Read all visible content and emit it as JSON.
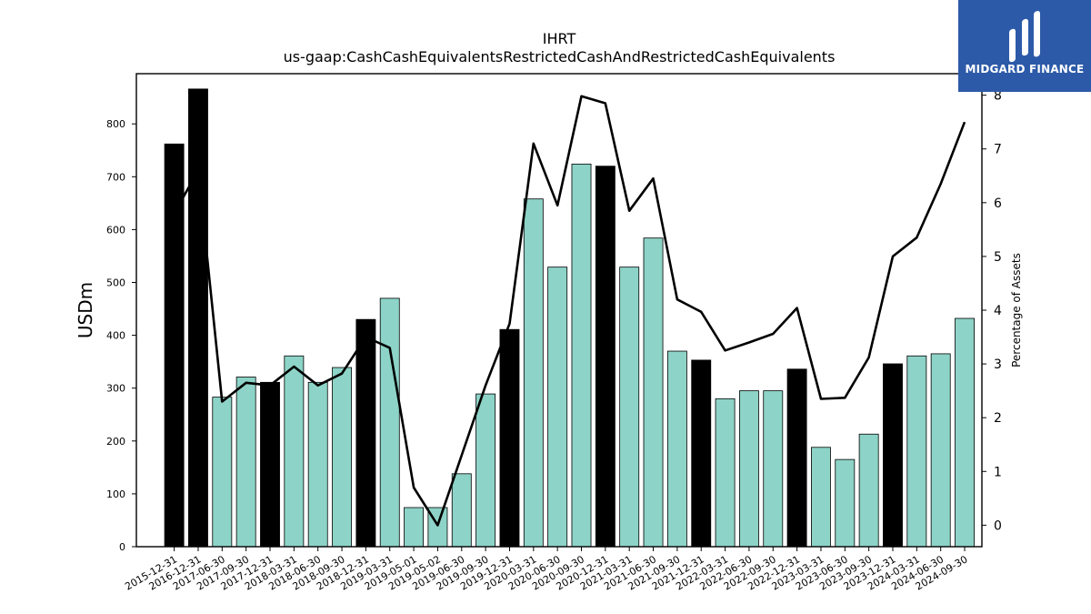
{
  "header": {
    "title": "IHRT",
    "subtitle": "us-gaap:CashCashEquivalentsRestrictedCashAndRestrictedCashEquivalents"
  },
  "logo": {
    "text": "MIDGARD FINANCE",
    "color": "#2c5aa8"
  },
  "chart_data": {
    "type": "bar",
    "title": "IHRT",
    "subtitle": "us-gaap:CashCashEquivalentsRestrictedCashAndRestrictedCashEquivalents",
    "ylabel": "USDm",
    "y2label": "Percentage of Assets",
    "ylim": [
      0,
      895
    ],
    "y2lim": [
      -0.4,
      8.4
    ],
    "yticks": [
      0,
      100,
      200,
      300,
      400,
      500,
      600,
      700,
      800
    ],
    "y2ticks": [
      0,
      1,
      2,
      3,
      4,
      5,
      6,
      7,
      8
    ],
    "colors": {
      "annual": "#000000",
      "quarterly": "#8dd3c7",
      "line": "#000000"
    },
    "categories": [
      "2015-12-31",
      "2016-12-31",
      "2017-06-30",
      "2017-09-30",
      "2017-12-31",
      "2018-03-31",
      "2018-06-30",
      "2018-09-30",
      "2018-12-31",
      "2019-03-31",
      "2019-05-01",
      "2019-05-02",
      "2019-06-30",
      "2019-09-30",
      "2019-12-31",
      "2020-03-31",
      "2020-06-30",
      "2020-09-30",
      "2020-12-31",
      "2021-03-31",
      "2021-06-30",
      "2021-09-30",
      "2021-12-31",
      "2022-03-31",
      "2022-06-30",
      "2022-09-30",
      "2022-12-31",
      "2023-03-31",
      "2023-06-30",
      "2023-09-30",
      "2023-12-31",
      "2024-03-31",
      "2024-06-30",
      "2024-09-30"
    ],
    "series": [
      {
        "type": "bar",
        "values": [
          762,
          866,
          283,
          321,
          311,
          361,
          311,
          339,
          430,
          470,
          74,
          74,
          138,
          289,
          411,
          658,
          529,
          724,
          720,
          529,
          584,
          370,
          353,
          280,
          295,
          295,
          336,
          188,
          165,
          213,
          346,
          361,
          365,
          432
        ]
      },
      {
        "type": "line",
        "axis": "right",
        "values": [
          5.8,
          6.6,
          2.3,
          2.65,
          2.6,
          2.95,
          2.6,
          2.82,
          3.5,
          3.3,
          0.7,
          0.0,
          1.3,
          2.6,
          3.75,
          7.1,
          5.95,
          7.98,
          7.85,
          5.85,
          6.45,
          4.2,
          3.97,
          3.25,
          3.4,
          3.56,
          4.04,
          2.35,
          2.37,
          3.12,
          5.0,
          5.35,
          6.35,
          7.5
        ]
      }
    ],
    "bar_kind": [
      "annual",
      "annual",
      "quarterly",
      "quarterly",
      "annual",
      "quarterly",
      "quarterly",
      "quarterly",
      "annual",
      "quarterly",
      "quarterly",
      "quarterly",
      "quarterly",
      "quarterly",
      "annual",
      "quarterly",
      "quarterly",
      "quarterly",
      "annual",
      "quarterly",
      "quarterly",
      "quarterly",
      "annual",
      "quarterly",
      "quarterly",
      "quarterly",
      "annual",
      "quarterly",
      "quarterly",
      "quarterly",
      "annual",
      "quarterly",
      "quarterly",
      "quarterly"
    ],
    "grid": false
  }
}
